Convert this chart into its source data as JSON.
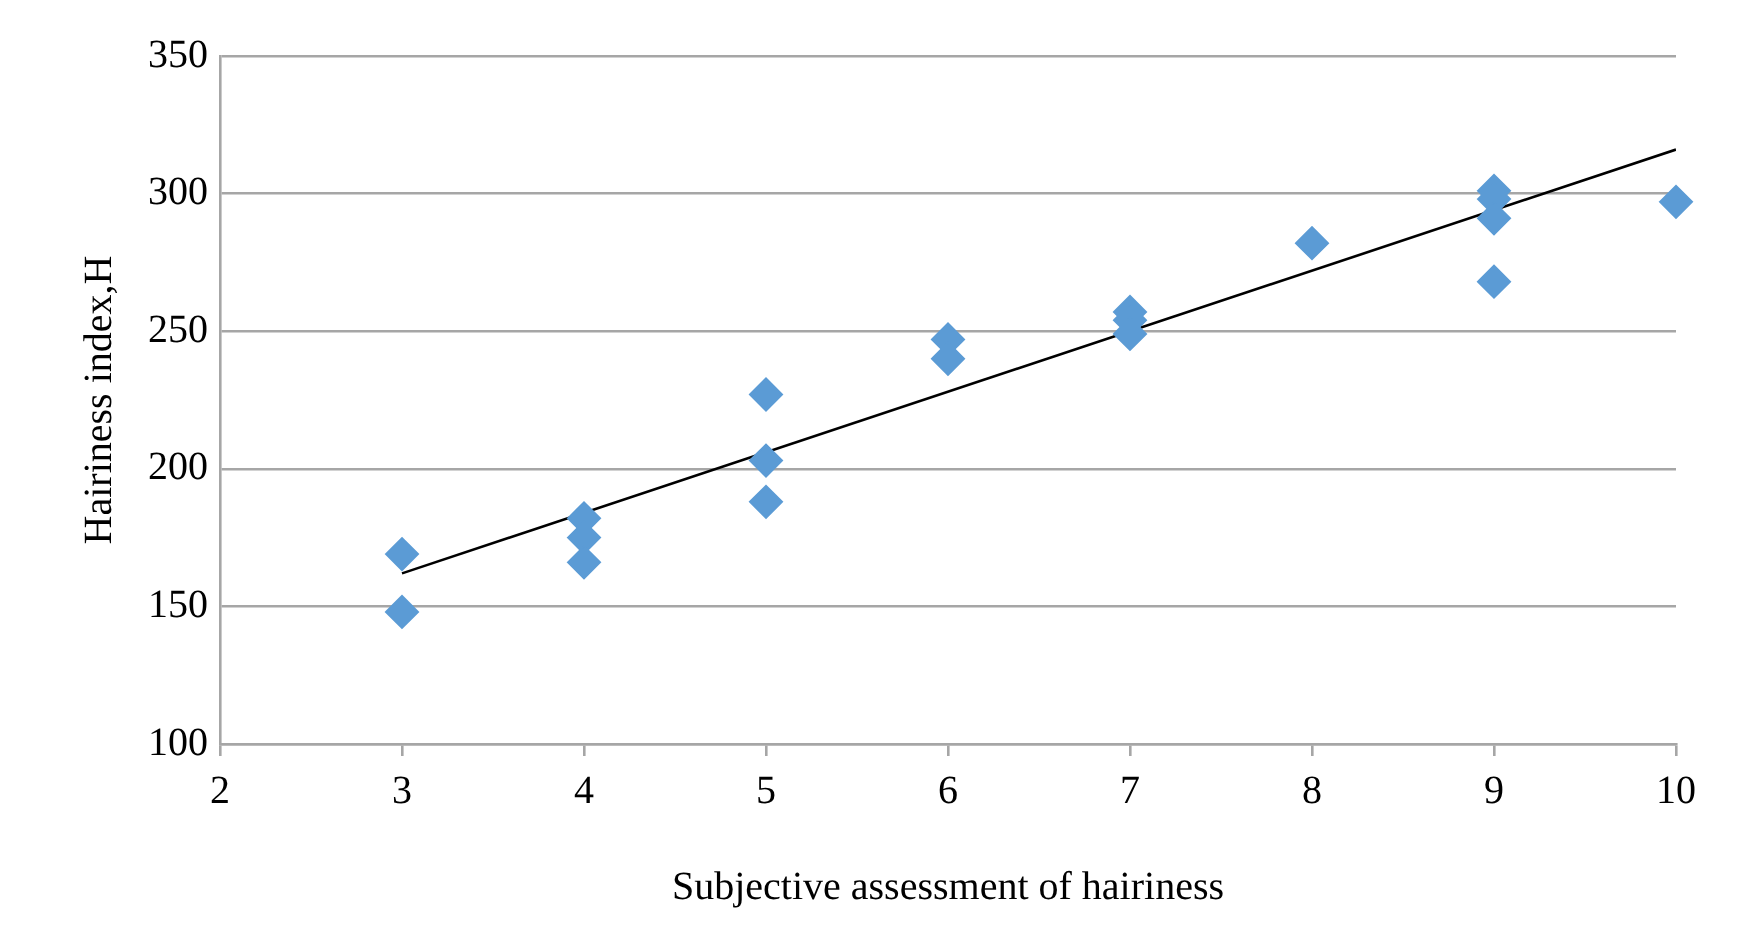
{
  "chart_data": {
    "type": "scatter",
    "xlabel": "Subjective assessment of hairiness",
    "ylabel": "Hairiness index,H",
    "xlim": [
      2,
      10
    ],
    "xticks": [
      2,
      3,
      4,
      5,
      6,
      7,
      8,
      9,
      10
    ],
    "ylim": [
      100,
      350
    ],
    "yticks": [
      100,
      150,
      200,
      250,
      300,
      350
    ],
    "grid": "y",
    "marker": "diamond",
    "series": [
      {
        "color": "#5b9bd5",
        "x": [
          3,
          3,
          4,
          4,
          4,
          5,
          5,
          5,
          6,
          6,
          7,
          7,
          7,
          8,
          9,
          9,
          9,
          9,
          10
        ],
        "values": [
          169,
          148,
          182,
          175,
          166,
          227,
          203,
          188,
          247,
          240,
          257,
          254,
          249,
          282,
          301,
          298,
          291,
          268,
          297
        ]
      },
      {
        "type": "line",
        "color": "#000000",
        "x": [
          3,
          10
        ],
        "values": [
          162,
          316
        ],
        "marker": "none"
      }
    ]
  }
}
